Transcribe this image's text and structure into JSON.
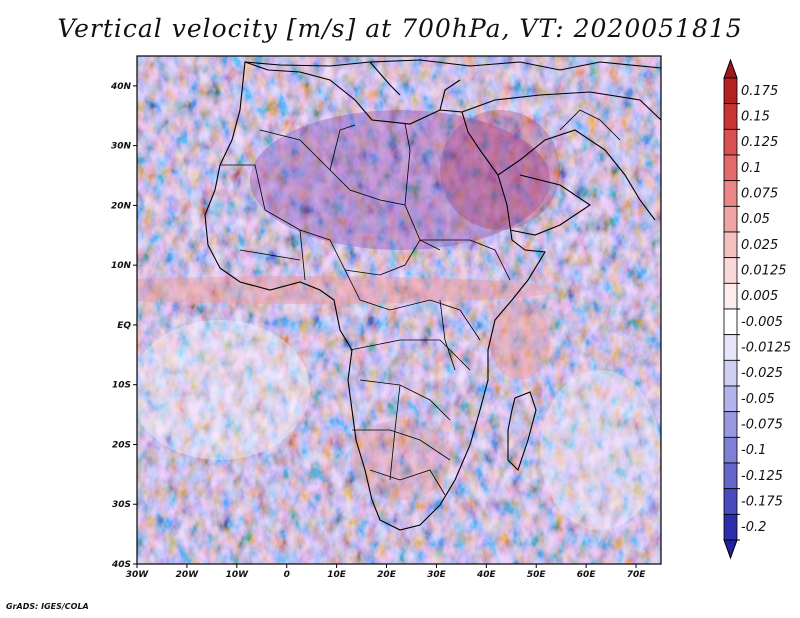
{
  "title": "Vertical velocity [m/s] at 700hPa, VT: 2020051815",
  "credit": "GrADS: IGES/COLA",
  "map": {
    "variable": "Vertical velocity",
    "units": "m/s",
    "level": "700hPa",
    "valid_time": "2020051815",
    "lon_range": [
      -30,
      75
    ],
    "lat_range": [
      -40,
      45
    ],
    "lat_ticks": [
      {
        "value": 40,
        "label": "40N"
      },
      {
        "value": 30,
        "label": "30N"
      },
      {
        "value": 20,
        "label": "20N"
      },
      {
        "value": 10,
        "label": "10N"
      },
      {
        "value": 0,
        "label": "EQ"
      },
      {
        "value": -10,
        "label": "10S"
      },
      {
        "value": -20,
        "label": "20S"
      },
      {
        "value": -30,
        "label": "30S"
      },
      {
        "value": -40,
        "label": "40S"
      }
    ],
    "lon_ticks": [
      {
        "value": -30,
        "label": "30W"
      },
      {
        "value": -20,
        "label": "20W"
      },
      {
        "value": -10,
        "label": "10W"
      },
      {
        "value": 0,
        "label": "0"
      },
      {
        "value": 10,
        "label": "10E"
      },
      {
        "value": 20,
        "label": "20E"
      },
      {
        "value": 30,
        "label": "30E"
      },
      {
        "value": 40,
        "label": "40E"
      },
      {
        "value": 50,
        "label": "50E"
      },
      {
        "value": 60,
        "label": "60E"
      },
      {
        "value": 70,
        "label": "70E"
      }
    ]
  },
  "colorbar": {
    "levels": [
      {
        "label": "0.175",
        "color": "#b22222"
      },
      {
        "label": "0.15",
        "color": "#c93535"
      },
      {
        "label": "0.125",
        "color": "#d85050"
      },
      {
        "label": "0.1",
        "color": "#e26a6a"
      },
      {
        "label": "0.075",
        "color": "#ea8787"
      },
      {
        "label": "0.05",
        "color": "#f0a4a4"
      },
      {
        "label": "0.025",
        "color": "#f5c0c0"
      },
      {
        "label": "0.0125",
        "color": "#f9d8d8"
      },
      {
        "label": "0.005",
        "color": "#fcecec"
      },
      {
        "label": "-0.005",
        "color": "#ffffff"
      },
      {
        "label": "-0.0125",
        "color": "#e6e6f8"
      },
      {
        "label": "-0.025",
        "color": "#cfcff1"
      },
      {
        "label": "-0.05",
        "color": "#b3b3e9"
      },
      {
        "label": "-0.075",
        "color": "#9999e0"
      },
      {
        "label": "-0.1",
        "color": "#7f7fd6"
      },
      {
        "label": "-0.125",
        "color": "#6565cc"
      },
      {
        "label": "-0.175",
        "color": "#4b4bc0"
      },
      {
        "label": "-0.2",
        "color": "#2e2eaa"
      }
    ],
    "top_arrow_color": "#a01818",
    "bottom_arrow_color": "#2020a0"
  }
}
